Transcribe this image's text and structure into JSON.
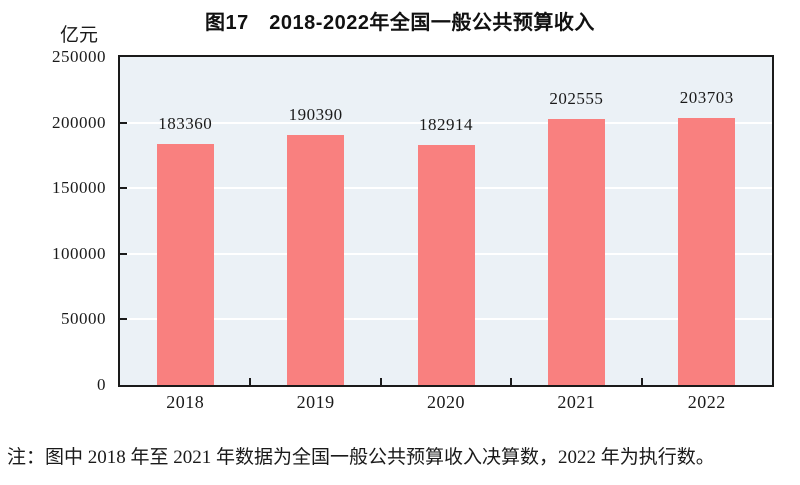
{
  "page": {
    "background": "#FFFFFF"
  },
  "chart": {
    "title": "图17　2018-2022年全国一般公共预算收入",
    "unit_label": "亿元",
    "note": "注：图中 2018 年至 2021 年数据为全国一般公共预算收入决算数，2022 年为执行数。"
  },
  "chart_data": {
    "type": "bar",
    "title": "图17　2018-2022年全国一般公共预算收入",
    "categories": [
      "2018",
      "2019",
      "2020",
      "2021",
      "2022"
    ],
    "values": [
      183360,
      190390,
      182914,
      202555,
      203703
    ],
    "value_labels": [
      "183360",
      "190390",
      "182914",
      "202555",
      "203703"
    ],
    "xlabel": "",
    "ylabel": "亿元",
    "ylim": [
      0,
      250000
    ],
    "yticks": [
      0,
      50000,
      100000,
      150000,
      200000,
      250000
    ],
    "ytick_labels": [
      "0",
      "50000",
      "100000",
      "150000",
      "200000",
      "250000"
    ],
    "grid": true,
    "legend": "none",
    "note": "注：图中 2018 年至 2021 年数据为全国一般公共预算收入决算数，2022 年为执行数。",
    "colors": {
      "bar": "#F9807F",
      "plot_background": "#EBF1F6",
      "gridline": "#FFFFFF",
      "axis": "#1A1A1A",
      "text": "#1A1A1A"
    }
  }
}
